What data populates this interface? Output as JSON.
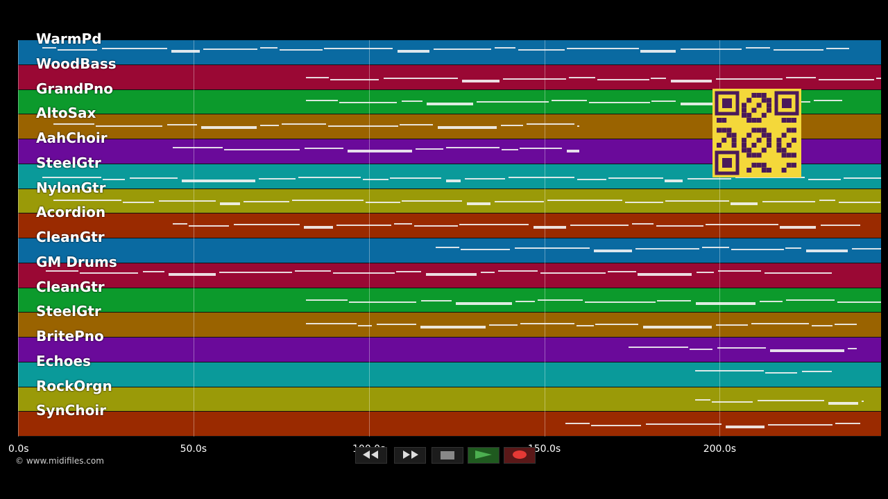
{
  "tracks": [
    {
      "name": "WarmPd",
      "color": "#0a6aa1"
    },
    {
      "name": "WoodBass",
      "color": "#9a0834"
    },
    {
      "name": "GrandPno",
      "color": "#0c9a2c"
    },
    {
      "name": "AltoSax",
      "color": "#9a6300"
    },
    {
      "name": "AahChoir",
      "color": "#6a0a9a"
    },
    {
      "name": "SteelGtr",
      "color": "#0a9a9a"
    },
    {
      "name": "NylonGtr",
      "color": "#9a9a08"
    },
    {
      "name": "Acordion",
      "color": "#9a2a00"
    },
    {
      "name": "CleanGtr",
      "color": "#0a6aa1"
    },
    {
      "name": "GM Drums",
      "color": "#9a0834"
    },
    {
      "name": "CleanGtr",
      "color": "#0c9a2c"
    },
    {
      "name": "SteelGtr",
      "color": "#9a6300"
    },
    {
      "name": "BritePno",
      "color": "#6a0a9a"
    },
    {
      "name": "Echoes",
      "color": "#0a9a9a"
    },
    {
      "name": "RockOrgn",
      "color": "#9a9a08"
    },
    {
      "name": "SynChoir",
      "color": "#9a2a00"
    }
  ],
  "timeline": {
    "ticks": [
      "0.0s",
      "50.0s",
      "100.0s",
      "150.0s",
      "200.0s"
    ],
    "tick_values": [
      0,
      50,
      100,
      150,
      200
    ],
    "max_seconds": 246
  },
  "track_activity": [
    {
      "start": 7,
      "end": 237
    },
    {
      "start": 82,
      "end": 246
    },
    {
      "start": 82,
      "end": 235
    },
    {
      "start": 10,
      "end": 160
    },
    {
      "start": 44,
      "end": 160
    },
    {
      "start": 7,
      "end": 246
    },
    {
      "start": 10,
      "end": 246
    },
    {
      "start": 44,
      "end": 240
    },
    {
      "start": 119,
      "end": 246
    },
    {
      "start": 8,
      "end": 232
    },
    {
      "start": 82,
      "end": 246
    },
    {
      "start": 82,
      "end": 239
    },
    {
      "start": 174,
      "end": 239
    },
    {
      "start": 193,
      "end": 232
    },
    {
      "start": 193,
      "end": 241
    },
    {
      "start": 156,
      "end": 240
    }
  ],
  "transport": {
    "rewind_icon": "rewind-icon",
    "forward_icon": "fast-forward-icon",
    "stop_icon": "stop-icon",
    "play_icon": "play-icon",
    "record_icon": "record-icon"
  },
  "copyright": "© www.midifiles.com"
}
